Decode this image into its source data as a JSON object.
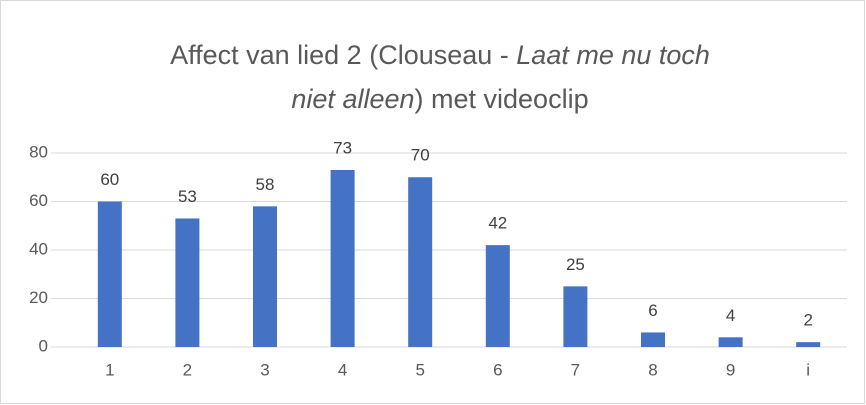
{
  "chart_data": {
    "type": "bar",
    "title_parts": [
      {
        "text": "Affect van lied 2 (Clouseau - ",
        "italic": false
      },
      {
        "text": "Laat me nu toch",
        "italic": true
      },
      {
        "text": "niet alleen",
        "italic": true
      },
      {
        "text": ") met videoclip",
        "italic": false
      }
    ],
    "categories": [
      "1",
      "2",
      "3",
      "4",
      "5",
      "6",
      "7",
      "8",
      "9",
      "i"
    ],
    "values": [
      60,
      53,
      58,
      73,
      70,
      42,
      25,
      6,
      4,
      2
    ],
    "color": "#4472c4",
    "ylim": [
      0,
      80
    ],
    "yticks": [
      0,
      20,
      40,
      60,
      80
    ],
    "grid": true
  }
}
